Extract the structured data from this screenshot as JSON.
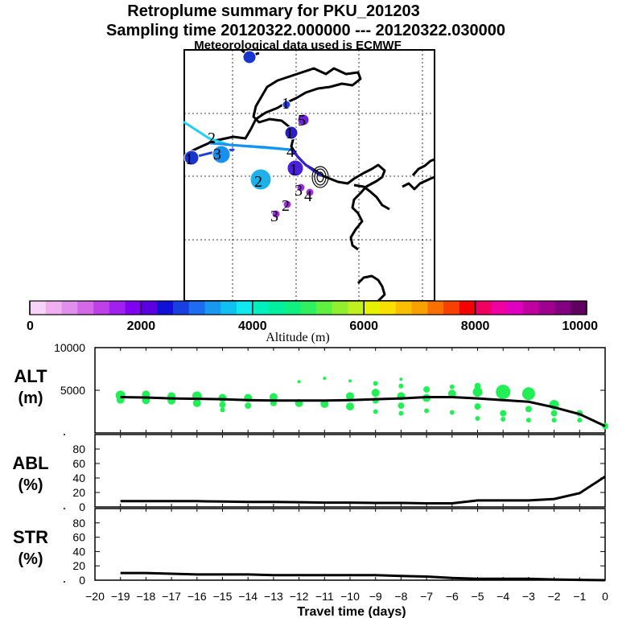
{
  "title": "Retroplume summary for PKU_201203",
  "sampling_time": "Sampling time   20120322.000000 --- 20120322.030000",
  "met_data": "Meteorological data used is ECMWF",
  "colors": {
    "colorbar": [
      "#f7d4f7",
      "#f0b0f0",
      "#e090ec",
      "#d468e8",
      "#c040e8",
      "#a020f0",
      "#8000f0",
      "#5a00e0",
      "#1010d8",
      "#1840e0",
      "#1e6cf0",
      "#1898f0",
      "#10c0f0",
      "#10e8f0",
      "#00f0c0",
      "#00f0a0",
      "#10f080",
      "#30f060",
      "#60f040",
      "#90f030",
      "#c0f020",
      "#e8f000",
      "#f8e000",
      "#f8c000",
      "#f8a000",
      "#f87000",
      "#f84000",
      "#f80000",
      "#f00060",
      "#f000a0",
      "#e000c0",
      "#c000a0",
      "#a00090",
      "#800080",
      "#600060"
    ],
    "alt_marker": "#22ee55",
    "line": "#000000"
  },
  "colorbar": {
    "tick_labels": [
      "0",
      "2000",
      "4000",
      "6000",
      "8000",
      "10000"
    ],
    "label": "Altitude (m)"
  },
  "map": {
    "numbers": [
      "1",
      "2",
      "3",
      "4",
      "5",
      "1",
      "1",
      "2",
      "3",
      "2",
      "3",
      "4",
      "1"
    ],
    "clusters": [
      {
        "label": "1",
        "color": "#1e3cd8"
      },
      {
        "label": "2",
        "color": "#22a8e8"
      },
      {
        "label": "3",
        "color": "#22a8e8"
      },
      {
        "label": "4",
        "color": "#5020d8"
      },
      {
        "label": "5",
        "color": "#7020d8"
      }
    ]
  },
  "chart_data": [
    {
      "type": "scatter",
      "panel": "ALT",
      "ylabel_line1": "ALT",
      "ylabel_line2": "(m)",
      "xlabel": "Travel time (days)",
      "xlim": [
        -20,
        0
      ],
      "ylim": [
        0,
        10000
      ],
      "ytick_labels": [
        "5000",
        "10000"
      ],
      "yticks": [
        5000,
        10000
      ],
      "series": [
        {
          "name": "mean altitude",
          "type": "line",
          "x": [
            -19,
            -18,
            -17,
            -16,
            -15,
            -14,
            -13,
            -12,
            -11,
            -10,
            -9,
            -8,
            -7,
            -6,
            -5,
            -4,
            -3,
            -2,
            -1,
            0
          ],
          "y": [
            4200,
            4150,
            4050,
            4000,
            3950,
            3850,
            3800,
            3800,
            3800,
            3850,
            3950,
            4050,
            4200,
            4200,
            4050,
            3850,
            3650,
            3000,
            2200,
            800
          ]
        },
        {
          "name": "cluster altitudes",
          "type": "scatter",
          "points": [
            {
              "x": -19,
              "y": 4400,
              "s": 6
            },
            {
              "x": -19,
              "y": 3900,
              "s": 5
            },
            {
              "x": -18,
              "y": 4500,
              "s": 5
            },
            {
              "x": -18,
              "y": 3850,
              "s": 5
            },
            {
              "x": -17,
              "y": 4300,
              "s": 5
            },
            {
              "x": -17,
              "y": 3800,
              "s": 5
            },
            {
              "x": -16,
              "y": 4300,
              "s": 6
            },
            {
              "x": -16,
              "y": 3500,
              "s": 5
            },
            {
              "x": -15,
              "y": 4100,
              "s": 5
            },
            {
              "x": -15,
              "y": 3300,
              "s": 4
            },
            {
              "x": -15,
              "y": 2700,
              "s": 3
            },
            {
              "x": -14,
              "y": 4100,
              "s": 5
            },
            {
              "x": -14,
              "y": 3200,
              "s": 4
            },
            {
              "x": -13,
              "y": 4200,
              "s": 5
            },
            {
              "x": -13,
              "y": 3500,
              "s": 4
            },
            {
              "x": -12,
              "y": 6000,
              "s": 2
            },
            {
              "x": -12,
              "y": 3500,
              "s": 5
            },
            {
              "x": -11,
              "y": 6400,
              "s": 2
            },
            {
              "x": -11,
              "y": 3400,
              "s": 5
            },
            {
              "x": -10,
              "y": 6100,
              "s": 2
            },
            {
              "x": -10,
              "y": 4300,
              "s": 5
            },
            {
              "x": -10,
              "y": 3100,
              "s": 5
            },
            {
              "x": -9,
              "y": 5800,
              "s": 3
            },
            {
              "x": -9,
              "y": 4700,
              "s": 5
            },
            {
              "x": -9,
              "y": 3800,
              "s": 4
            },
            {
              "x": -9,
              "y": 2500,
              "s": 3
            },
            {
              "x": -8,
              "y": 6300,
              "s": 2
            },
            {
              "x": -8,
              "y": 5500,
              "s": 3
            },
            {
              "x": -8,
              "y": 4300,
              "s": 5
            },
            {
              "x": -8,
              "y": 3200,
              "s": 4
            },
            {
              "x": -8,
              "y": 2300,
              "s": 3
            },
            {
              "x": -7,
              "y": 5100,
              "s": 4
            },
            {
              "x": -7,
              "y": 4100,
              "s": 5
            },
            {
              "x": -7,
              "y": 2600,
              "s": 3
            },
            {
              "x": -6,
              "y": 5400,
              "s": 3
            },
            {
              "x": -6,
              "y": 4600,
              "s": 5
            },
            {
              "x": -6,
              "y": 2400,
              "s": 3
            },
            {
              "x": -5,
              "y": 5500,
              "s": 4
            },
            {
              "x": -5,
              "y": 4800,
              "s": 6
            },
            {
              "x": -5,
              "y": 3100,
              "s": 4
            },
            {
              "x": -5,
              "y": 1700,
              "s": 3
            },
            {
              "x": -4,
              "y": 4800,
              "s": 9
            },
            {
              "x": -4,
              "y": 2300,
              "s": 4
            },
            {
              "x": -4,
              "y": 1600,
              "s": 3
            },
            {
              "x": -3,
              "y": 4600,
              "s": 8
            },
            {
              "x": -3,
              "y": 2800,
              "s": 4
            },
            {
              "x": -3,
              "y": 1500,
              "s": 3
            },
            {
              "x": -2,
              "y": 3300,
              "s": 6
            },
            {
              "x": -2,
              "y": 2300,
              "s": 4
            },
            {
              "x": -2,
              "y": 1500,
              "s": 3
            },
            {
              "x": -1,
              "y": 2300,
              "s": 4
            },
            {
              "x": -1,
              "y": 1500,
              "s": 3
            },
            {
              "x": 0,
              "y": 800,
              "s": 4
            }
          ]
        }
      ]
    },
    {
      "type": "line",
      "panel": "ABL",
      "ylabel_line1": "ABL",
      "ylabel_line2": "(%)",
      "xlim": [
        -20,
        0
      ],
      "ylim": [
        0,
        100
      ],
      "yticks": [
        0,
        20,
        40,
        60,
        80
      ],
      "ytick_labels": [
        "0",
        "20",
        "40",
        "60",
        "80"
      ],
      "x": [
        -19,
        -18,
        -17,
        -16,
        -15,
        -14,
        -13,
        -12,
        -11,
        -10,
        -9,
        -8,
        -7,
        -6,
        -5,
        -4,
        -3,
        -2,
        -1,
        0
      ],
      "y": [
        8,
        8,
        8,
        8,
        7.5,
        7,
        7,
        6.5,
        6,
        6,
        5.5,
        5.5,
        5,
        5,
        9,
        9,
        9,
        11,
        19,
        42
      ]
    },
    {
      "type": "line",
      "panel": "STR",
      "ylabel_line1": "STR",
      "ylabel_line2": "(%)",
      "xlim": [
        -20,
        0
      ],
      "ylim": [
        0,
        100
      ],
      "yticks": [
        0,
        20,
        40,
        60,
        80
      ],
      "ytick_labels": [
        "0",
        "20",
        "40",
        "60",
        "80"
      ],
      "x": [
        -19,
        -18,
        -17,
        -16,
        -15,
        -14,
        -13,
        -12,
        -11,
        -10,
        -9,
        -8,
        -7,
        -6,
        -5,
        -4,
        -3,
        -2,
        -1,
        0
      ],
      "y": [
        10,
        10,
        9,
        8,
        8,
        8,
        7,
        7,
        7,
        7,
        7,
        6,
        5,
        3,
        2,
        2,
        2,
        1,
        0.5,
        0
      ],
      "xtick_labels": [
        "−20",
        "−19",
        "−18",
        "−17",
        "−16",
        "−15",
        "−14",
        "−13",
        "−12",
        "−11",
        "−10",
        "−9",
        "−8",
        "−7",
        "−6",
        "−5",
        "−4",
        "−3",
        "−2",
        "−1",
        "0"
      ]
    }
  ]
}
